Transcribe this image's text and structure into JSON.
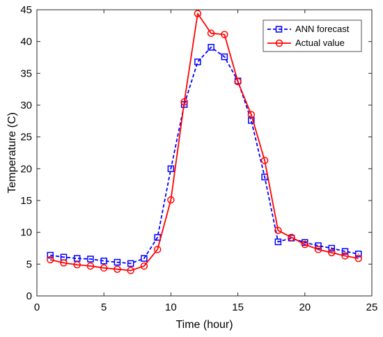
{
  "chart_data": {
    "type": "line",
    "xlabel": "Time (hour)",
    "ylabel": "Temperature (C)",
    "xlim": [
      0,
      25
    ],
    "ylim": [
      0,
      45
    ],
    "xticks": [
      0,
      5,
      10,
      15,
      20,
      25
    ],
    "yticks": [
      0,
      5,
      10,
      15,
      20,
      25,
      30,
      35,
      40,
      45
    ],
    "grid": false,
    "legend_position": "top-right",
    "x": [
      1,
      2,
      3,
      4,
      5,
      6,
      7,
      8,
      9,
      10,
      11,
      12,
      13,
      14,
      15,
      16,
      17,
      18,
      19,
      20,
      21,
      22,
      23,
      24
    ],
    "series": [
      {
        "name": "ANN forecast",
        "color": "#0000ff",
        "line_style": "dashed",
        "marker": "square",
        "values": [
          6.4,
          6.1,
          5.9,
          5.8,
          5.5,
          5.3,
          5.1,
          5.9,
          9.2,
          20.0,
          30.1,
          36.8,
          39.1,
          37.6,
          33.8,
          27.6,
          18.7,
          8.5,
          9.1,
          8.4,
          7.9,
          7.5,
          7.0,
          6.6
        ]
      },
      {
        "name": "Actual value",
        "color": "#ff0000",
        "line_style": "solid",
        "marker": "circle",
        "values": [
          5.7,
          5.2,
          4.9,
          4.7,
          4.4,
          4.2,
          4.0,
          4.7,
          7.3,
          15.1,
          30.5,
          44.4,
          41.3,
          41.1,
          33.7,
          28.5,
          21.3,
          10.3,
          9.2,
          8.1,
          7.3,
          6.8,
          6.3,
          5.9
        ]
      }
    ]
  }
}
